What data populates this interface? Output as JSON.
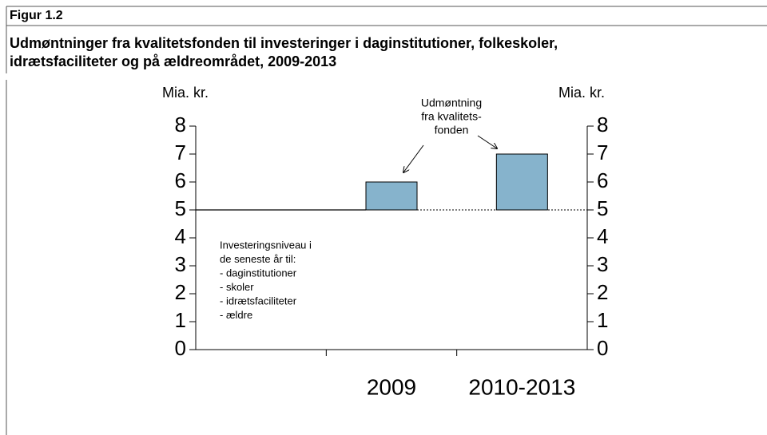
{
  "chart_data": {
    "type": "bar",
    "figure_label": "Figur 1.2",
    "title": [
      "Udmøntninger fra kvalitetsfonden til investeringer i daginstitutioner, folkeskoler,",
      "idrætsfaciliteter og på ældreområdet, 2009-2013"
    ],
    "ylabel": "Mia. kr.",
    "y2label": "Mia. kr.",
    "categories": [
      null,
      "2009",
      "2010-2013"
    ],
    "values": [
      null,
      6,
      7
    ],
    "base": 5,
    "color": "#86b3cc",
    "ylim": [
      0,
      8
    ],
    "yticks": [
      0,
      1,
      2,
      3,
      4,
      5,
      6,
      7,
      8
    ],
    "y2lim": [
      0,
      8
    ],
    "y2ticks": [
      0,
      1,
      2,
      3,
      4,
      5,
      6,
      7,
      8
    ],
    "annotations": [
      {
        "lines": [
          "Udmøntning",
          "fra kvalitets-",
          "fonden"
        ]
      },
      {
        "lines": [
          "Investeringsniveau i",
          "de seneste år til:",
          "- daginstitutioner",
          "- skoler",
          "- idrætsfaciliteter",
          "- ældre"
        ]
      }
    ]
  }
}
